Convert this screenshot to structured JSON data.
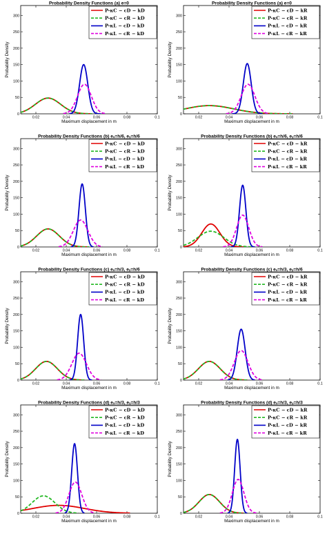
{
  "chart_data": [
    {
      "type": "line",
      "title": "Probability Density Functions (a) e=0",
      "xlabel": "Maximum displacement in m",
      "ylabel": "Probability Density",
      "xlim": [
        0.01,
        0.1
      ],
      "ylim": [
        0,
        330
      ],
      "xticks": [
        "0.02",
        "0.04",
        "0.06",
        "0.08",
        "0.1"
      ],
      "yticks": [
        "0",
        "50",
        "100",
        "150",
        "200",
        "250",
        "300"
      ],
      "legend_position": "top-right",
      "series": [
        {
          "name": "P-κC − cD − kD",
          "color": "#e00000",
          "dash": "solid",
          "mean": 0.028,
          "sd": 0.0083,
          "peak": 48,
          "range": [
            0.01,
            0.057
          ]
        },
        {
          "name": "P-κC − cR − kD",
          "color": "#22b822",
          "dash": "dash",
          "mean": 0.028,
          "sd": 0.0083,
          "peak": 48,
          "range": [
            0.01,
            0.057
          ]
        },
        {
          "name": "P-κL − cD − kD",
          "color": "#0000c8",
          "dash": "solid",
          "mean": 0.0515,
          "sd": 0.0027,
          "peak": 150,
          "range": [
            0.042,
            0.063
          ]
        },
        {
          "name": "P-κL − cR − kD",
          "color": "#e000e0",
          "dash": "dash",
          "mean": 0.052,
          "sd": 0.0045,
          "peak": 90,
          "range": [
            0.038,
            0.066
          ]
        }
      ]
    },
    {
      "type": "line",
      "title": "Probability Density Functions (a) e=0",
      "xlabel": "Maximum displacement in m",
      "ylabel": "Probability Density",
      "xlim": [
        0.01,
        0.1
      ],
      "ylim": [
        0,
        330
      ],
      "xticks": [
        "0.02",
        "0.04",
        "0.06",
        "0.08",
        "0.1"
      ],
      "yticks": [
        "0",
        "50",
        "100",
        "150",
        "200",
        "250",
        "300"
      ],
      "legend_position": "top-right",
      "series": [
        {
          "name": "P-κC − cD − kR",
          "color": "#e00000",
          "dash": "solid",
          "mean": 0.027,
          "sd": 0.016,
          "peak": 25,
          "range": [
            0.01,
            0.082
          ]
        },
        {
          "name": "P-κC − cR − kR",
          "color": "#22b822",
          "dash": "dash",
          "mean": 0.027,
          "sd": 0.016,
          "peak": 25,
          "range": [
            0.01,
            0.082
          ]
        },
        {
          "name": "P-κL − cD − kR",
          "color": "#0000c8",
          "dash": "solid",
          "mean": 0.052,
          "sd": 0.0026,
          "peak": 153,
          "range": [
            0.042,
            0.062
          ]
        },
        {
          "name": "P-κL − cR − kR",
          "color": "#e000e0",
          "dash": "dash",
          "mean": 0.0525,
          "sd": 0.0045,
          "peak": 90,
          "range": [
            0.038,
            0.066
          ]
        }
      ]
    },
    {
      "type": "line",
      "title": "Probability Density Functions (b) eₓ=h/6, eᵧ=h/6",
      "xlabel": "Maximum displacement in m",
      "ylabel": "Probability Density",
      "xlim": [
        0.01,
        0.1
      ],
      "ylim": [
        0,
        330
      ],
      "xticks": [
        "0.02",
        "0.04",
        "0.06",
        "0.08",
        "0.1"
      ],
      "yticks": [
        "0",
        "50",
        "100",
        "150",
        "200",
        "250",
        "300"
      ],
      "legend_position": "top-right",
      "series": [
        {
          "name": "P-κC − cD − kD",
          "color": "#e00000",
          "dash": "solid",
          "mean": 0.028,
          "sd": 0.0075,
          "peak": 55,
          "range": [
            0.01,
            0.055
          ]
        },
        {
          "name": "P-κC − cR − kD",
          "color": "#22b822",
          "dash": "dash",
          "mean": 0.028,
          "sd": 0.0075,
          "peak": 55,
          "range": [
            0.01,
            0.055
          ]
        },
        {
          "name": "P-κL − cD − kD",
          "color": "#0000c8",
          "dash": "solid",
          "mean": 0.0505,
          "sd": 0.0021,
          "peak": 192,
          "range": [
            0.043,
            0.058
          ]
        },
        {
          "name": "P-κL − cR − kD",
          "color": "#e000e0",
          "dash": "dash",
          "mean": 0.0495,
          "sd": 0.0048,
          "peak": 82,
          "range": [
            0.035,
            0.064
          ]
        }
      ]
    },
    {
      "type": "line",
      "title": "Probability Density Functions (b) eₓ=h/6, eᵧ=h/6",
      "xlabel": "Maximum displacement in m",
      "ylabel": "Probability Density",
      "xlim": [
        0.01,
        0.1
      ],
      "ylim": [
        0,
        330
      ],
      "xticks": [
        "0.02",
        "0.04",
        "0.06",
        "0.08",
        "0.1"
      ],
      "yticks": [
        "0",
        "50",
        "100",
        "150",
        "200",
        "250",
        "300"
      ],
      "legend_position": "top-right",
      "series": [
        {
          "name": "P-κC − cD − kR",
          "color": "#e00000",
          "dash": "solid",
          "mean": 0.028,
          "sd": 0.006,
          "peak": 70,
          "range": [
            0.01,
            0.05
          ]
        },
        {
          "name": "P-κC − cR − kR",
          "color": "#22b822",
          "dash": "dash",
          "mean": 0.028,
          "sd": 0.0085,
          "peak": 48,
          "range": [
            0.01,
            0.055
          ]
        },
        {
          "name": "P-κL − cD − kR",
          "color": "#0000c8",
          "dash": "solid",
          "mean": 0.049,
          "sd": 0.0021,
          "peak": 188,
          "range": [
            0.041,
            0.057
          ]
        },
        {
          "name": "P-κL − cR − kR",
          "color": "#e000e0",
          "dash": "dash",
          "mean": 0.049,
          "sd": 0.004,
          "peak": 97,
          "range": [
            0.036,
            0.062
          ]
        }
      ]
    },
    {
      "type": "line",
      "title": "Probability Density Functions (c) eₓ=h/3, eᵧ=h/6",
      "xlabel": "Maximum displacement in m",
      "ylabel": "Probability Density",
      "xlim": [
        0.01,
        0.1
      ],
      "ylim": [
        0,
        330
      ],
      "xticks": [
        "0.02",
        "0.04",
        "0.06",
        "0.08",
        "0.1"
      ],
      "yticks": [
        "0",
        "50",
        "100",
        "150",
        "200",
        "250",
        "300"
      ],
      "legend_position": "top-right",
      "series": [
        {
          "name": "P-κC − cD − kD",
          "color": "#e00000",
          "dash": "solid",
          "mean": 0.027,
          "sd": 0.0072,
          "peak": 57,
          "range": [
            0.01,
            0.052
          ]
        },
        {
          "name": "P-κC − cR − kD",
          "color": "#22b822",
          "dash": "dash",
          "mean": 0.027,
          "sd": 0.0072,
          "peak": 57,
          "range": [
            0.01,
            0.052
          ]
        },
        {
          "name": "P-κL − cD − kD",
          "color": "#0000c8",
          "dash": "solid",
          "mean": 0.0495,
          "sd": 0.002,
          "peak": 200,
          "range": [
            0.042,
            0.057
          ]
        },
        {
          "name": "P-κL − cR − kD",
          "color": "#e000e0",
          "dash": "dash",
          "mean": 0.0485,
          "sd": 0.0048,
          "peak": 82,
          "range": [
            0.034,
            0.063
          ]
        }
      ]
    },
    {
      "type": "line",
      "title": "Probability Density Functions (c) eₓ=h/3, eᵧ=h/6",
      "xlabel": "Maximum displacement in m",
      "ylabel": "Probability Density",
      "xlim": [
        0.01,
        0.1
      ],
      "ylim": [
        0,
        330
      ],
      "xticks": [
        "0.02",
        "0.04",
        "0.06",
        "0.08",
        "0.1"
      ],
      "yticks": [
        "0",
        "50",
        "100",
        "150",
        "200",
        "250",
        "300"
      ],
      "legend_position": "top-right",
      "series": [
        {
          "name": "P-κC − cD − kR",
          "color": "#e00000",
          "dash": "solid",
          "mean": 0.027,
          "sd": 0.0072,
          "peak": 57,
          "range": [
            0.01,
            0.052
          ]
        },
        {
          "name": "P-κC − cR − kR",
          "color": "#22b822",
          "dash": "dash",
          "mean": 0.027,
          "sd": 0.0072,
          "peak": 57,
          "range": [
            0.01,
            0.052
          ]
        },
        {
          "name": "P-κL − cD − kR",
          "color": "#0000c8",
          "dash": "solid",
          "mean": 0.048,
          "sd": 0.0026,
          "peak": 155,
          "range": [
            0.039,
            0.057
          ]
        },
        {
          "name": "P-κL − cR − kR",
          "color": "#e000e0",
          "dash": "dash",
          "mean": 0.048,
          "sd": 0.0045,
          "peak": 90,
          "range": [
            0.034,
            0.062
          ]
        }
      ]
    },
    {
      "type": "line",
      "title": "Probability Density Functions (d) eₓ=h/3, eᵧ=h/3",
      "xlabel": "Maximum displacement in m",
      "ylabel": "Probability Density",
      "xlim": [
        0.01,
        0.1
      ],
      "ylim": [
        0,
        330
      ],
      "xticks": [
        "0.02",
        "0.04",
        "0.06",
        "0.08",
        "0.1"
      ],
      "yticks": [
        "0",
        "50",
        "100",
        "150",
        "200",
        "250",
        "300"
      ],
      "legend_position": "top-right",
      "series": [
        {
          "name": "P-κC − cD − kD",
          "color": "#e00000",
          "dash": "solid",
          "mean": 0.035,
          "sd": 0.017,
          "peak": 24,
          "range": [
            0.01,
            0.082
          ]
        },
        {
          "name": "P-κC − cR − kD",
          "color": "#22b822",
          "dash": "dash",
          "mean": 0.025,
          "sd": 0.0075,
          "peak": 53,
          "range": [
            0.01,
            0.048
          ]
        },
        {
          "name": "P-κL − cD − kD",
          "color": "#0000c8",
          "dash": "solid",
          "mean": 0.0455,
          "sd": 0.0019,
          "peak": 212,
          "range": [
            0.039,
            0.052
          ]
        },
        {
          "name": "P-κL − cR − kD",
          "color": "#e000e0",
          "dash": "dash",
          "mean": 0.046,
          "sd": 0.0042,
          "peak": 95,
          "range": [
            0.033,
            0.059
          ]
        }
      ]
    },
    {
      "type": "line",
      "title": "Probability Density Functions (d) eₓ=h/3, eᵧ=h/3",
      "xlabel": "Maximum displacement in m",
      "ylabel": "Probability Density",
      "xlim": [
        0.01,
        0.1
      ],
      "ylim": [
        0,
        330
      ],
      "xticks": [
        "0.02",
        "0.04",
        "0.06",
        "0.08",
        "0.1"
      ],
      "yticks": [
        "0",
        "50",
        "100",
        "150",
        "200",
        "250",
        "300"
      ],
      "legend_position": "top-right",
      "series": [
        {
          "name": "P-κC − cD − kR",
          "color": "#e00000",
          "dash": "solid",
          "mean": 0.027,
          "sd": 0.0068,
          "peak": 57,
          "range": [
            0.01,
            0.05
          ]
        },
        {
          "name": "P-κC − cR − kR",
          "color": "#22b822",
          "dash": "dash",
          "mean": 0.027,
          "sd": 0.0068,
          "peak": 57,
          "range": [
            0.01,
            0.05
          ]
        },
        {
          "name": "P-κL − cD − kR",
          "color": "#0000c8",
          "dash": "solid",
          "mean": 0.0455,
          "sd": 0.0018,
          "peak": 225,
          "range": [
            0.039,
            0.052
          ]
        },
        {
          "name": "P-κL − cR − kR",
          "color": "#e000e0",
          "dash": "dash",
          "mean": 0.046,
          "sd": 0.0038,
          "peak": 103,
          "range": [
            0.034,
            0.058
          ]
        }
      ]
    }
  ]
}
